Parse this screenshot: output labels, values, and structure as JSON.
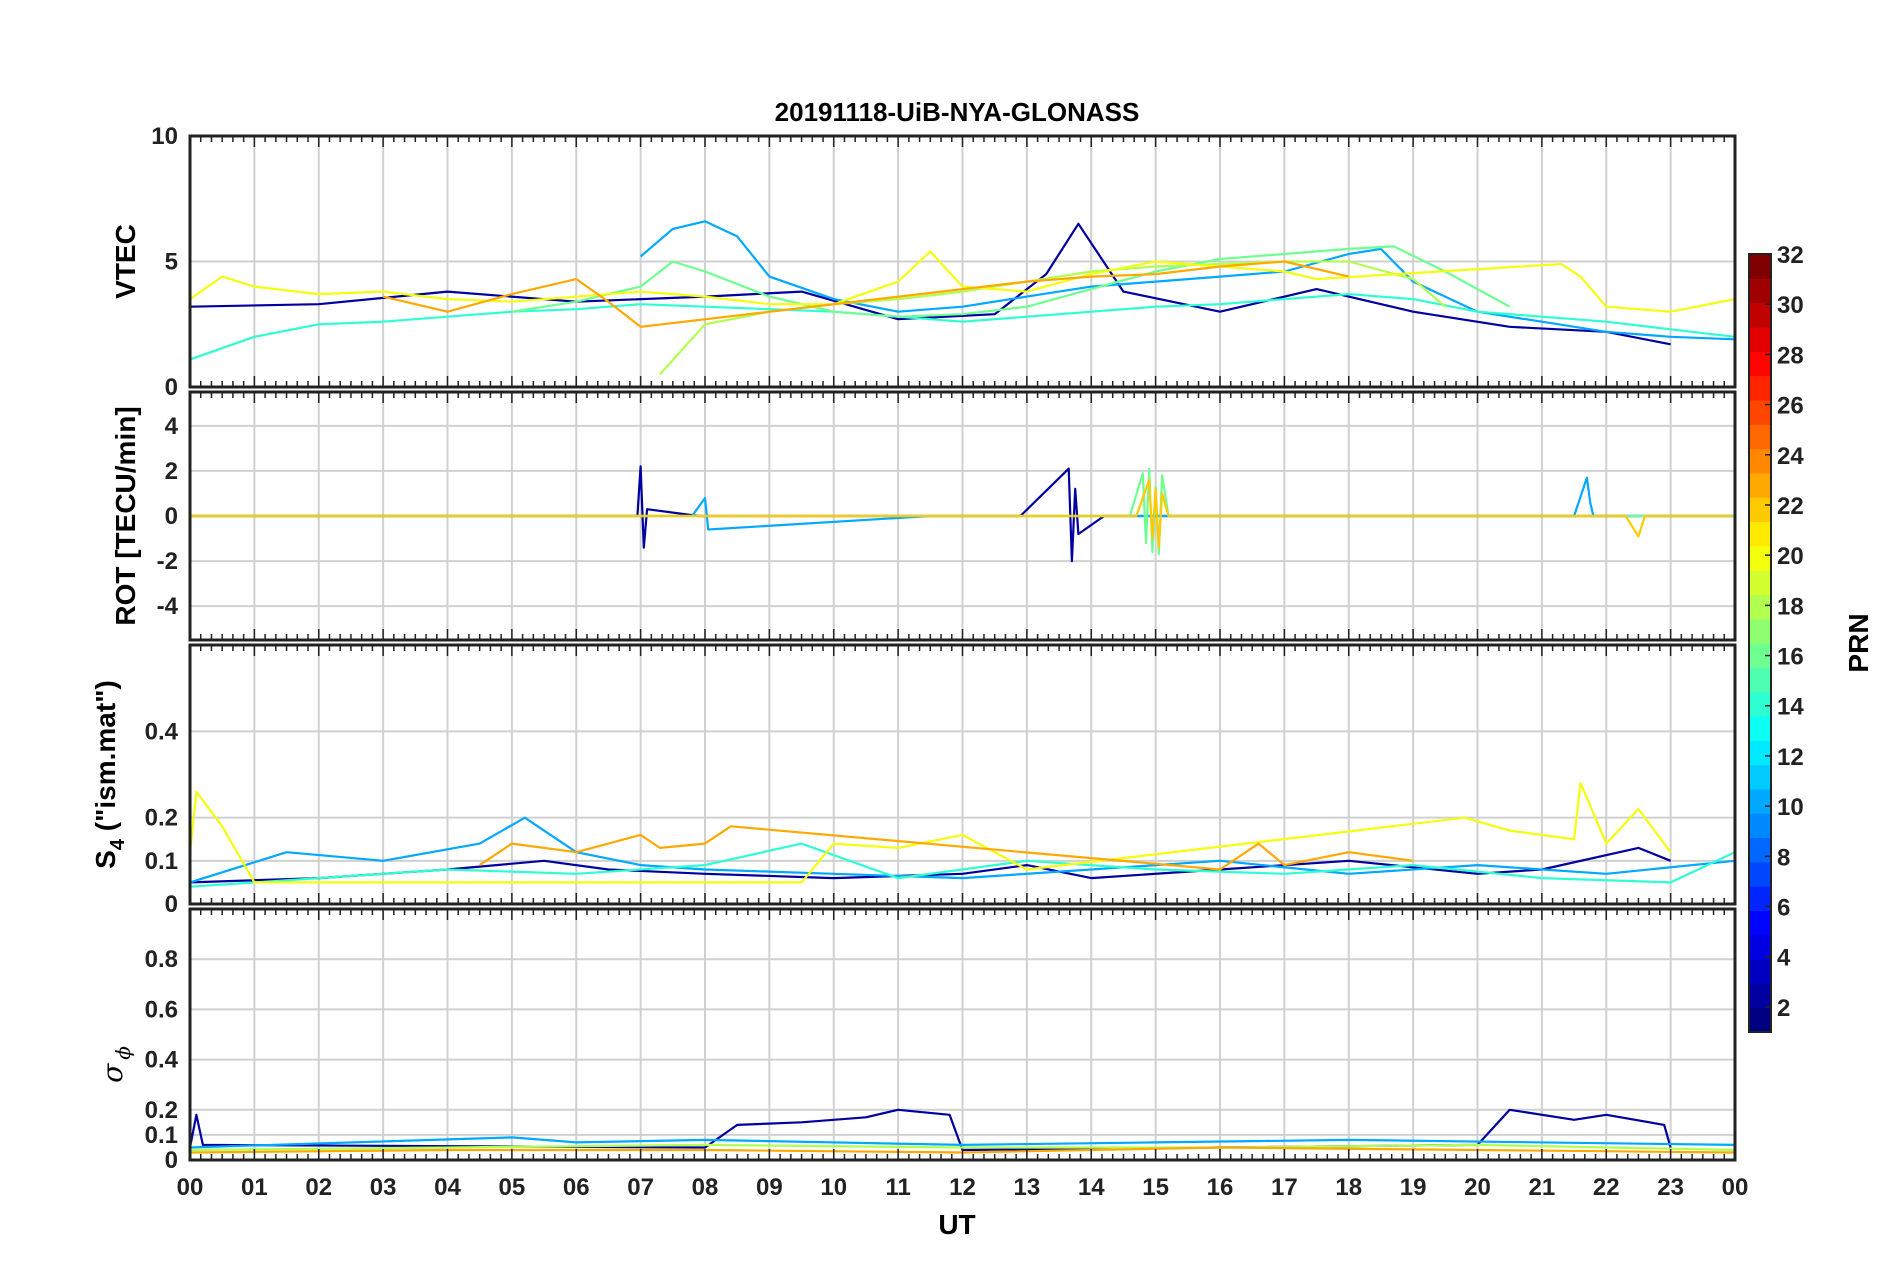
{
  "chart_data": {
    "type": "line",
    "title": "20191118-UiB-NYA-GLONASS",
    "xlabel": "UT",
    "x_range_hours": [
      0,
      24
    ],
    "x_tick_labels": [
      "00",
      "01",
      "02",
      "03",
      "04",
      "05",
      "06",
      "07",
      "08",
      "09",
      "10",
      "11",
      "12",
      "13",
      "14",
      "15",
      "16",
      "17",
      "18",
      "19",
      "20",
      "21",
      "22",
      "23",
      "00"
    ],
    "grid": true,
    "colorbar": {
      "label": "PRN",
      "range": [
        1,
        32
      ],
      "colormap": "jet",
      "tick_labels": [
        "2",
        "4",
        "6",
        "8",
        "10",
        "12",
        "14",
        "16",
        "18",
        "20",
        "22",
        "24",
        "26",
        "28",
        "30",
        "32"
      ]
    },
    "panels": [
      {
        "name": "vtec",
        "ylabel": "VTEC",
        "ylim": [
          0,
          10
        ],
        "y_ticks": [
          0,
          5,
          10
        ],
        "y_tick_labels": [
          "0",
          "5",
          "10"
        ],
        "series": [
          {
            "prn": 2,
            "x": [
              0.0,
              2.0,
              4.0,
              6.0,
              8.0,
              9.5,
              11.0,
              12.5,
              13.3,
              13.8,
              14.5,
              16.0,
              17.5,
              19.0,
              20.5,
              22.0,
              23.0
            ],
            "y": [
              3.2,
              3.3,
              3.8,
              3.4,
              3.6,
              3.8,
              2.7,
              2.9,
              4.5,
              6.5,
              3.8,
              3.0,
              3.9,
              3.0,
              2.4,
              2.2,
              1.7
            ]
          },
          {
            "prn": 10,
            "x": [
              7.0,
              7.5,
              8.0,
              8.5,
              9.0,
              10.0,
              11.0,
              12.0,
              13.0,
              14.0,
              15.0,
              16.0,
              17.0,
              18.0,
              18.5,
              19.0,
              20.0,
              21.0,
              22.0,
              23.0,
              24.0
            ],
            "y": [
              5.2,
              6.3,
              6.6,
              6.0,
              4.4,
              3.5,
              3.0,
              3.2,
              3.6,
              4.0,
              4.2,
              4.4,
              4.6,
              5.3,
              5.5,
              4.2,
              3.0,
              2.6,
              2.2,
              2.0,
              1.9
            ]
          },
          {
            "prn": 14,
            "x": [
              0.0,
              1.0,
              2.0,
              3.0,
              4.0,
              5.0,
              6.0,
              7.0,
              8.0,
              9.0,
              10.0,
              11.0,
              12.0,
              13.0,
              14.0,
              15.0,
              16.0,
              17.0,
              18.0,
              19.0,
              20.0,
              21.0,
              22.0,
              23.0,
              24.0
            ],
            "y": [
              1.1,
              2.0,
              2.5,
              2.6,
              2.8,
              3.0,
              3.1,
              3.3,
              3.2,
              3.1,
              3.0,
              2.8,
              2.6,
              2.8,
              3.0,
              3.2,
              3.3,
              3.5,
              3.7,
              3.5,
              3.0,
              2.8,
              2.6,
              2.3,
              2.0
            ]
          },
          {
            "prn": 16,
            "x": [
              5.0,
              6.0,
              7.0,
              7.5,
              8.0,
              9.0,
              10.0,
              11.0,
              12.0,
              13.0,
              14.0,
              15.0,
              16.0,
              17.0,
              18.0,
              18.7,
              19.5,
              20.5
            ],
            "y": [
              3.0,
              3.4,
              4.0,
              5.0,
              4.6,
              3.6,
              3.0,
              2.8,
              2.9,
              3.2,
              3.9,
              4.6,
              5.1,
              5.3,
              5.5,
              5.6,
              4.6,
              3.2
            ]
          },
          {
            "prn": 18,
            "x": [
              7.3,
              8.0,
              9.0,
              10.0,
              11.0,
              12.0,
              13.0,
              14.0,
              15.0,
              16.0,
              17.0,
              18.0,
              19.0,
              19.5
            ],
            "y": [
              0.5,
              2.5,
              3.0,
              3.3,
              3.5,
              3.8,
              4.2,
              4.6,
              4.8,
              4.9,
              5.0,
              5.0,
              4.3,
              3.2
            ]
          },
          {
            "prn": 20,
            "x": [
              0.0,
              0.5,
              1.0,
              2.0,
              3.0,
              4.0,
              5.0,
              6.0,
              7.0,
              8.0,
              9.0,
              10.0,
              11.0,
              11.5,
              12.0,
              13.0,
              14.0,
              15.0,
              16.0,
              17.0,
              17.5,
              21.3,
              21.6,
              22.0,
              23.0,
              24.0
            ],
            "y": [
              3.5,
              4.4,
              4.0,
              3.7,
              3.8,
              3.5,
              3.4,
              3.6,
              3.8,
              3.6,
              3.3,
              3.3,
              4.2,
              5.4,
              4.0,
              3.8,
              4.5,
              5.0,
              4.8,
              4.6,
              4.3,
              4.9,
              4.4,
              3.2,
              3.0,
              3.5
            ]
          },
          {
            "prn": 23,
            "x": [
              3.0,
              4.0,
              5.0,
              5.5,
              6.0,
              6.5,
              7.0,
              13.0,
              14.0,
              15.0,
              16.0,
              17.0,
              18.0
            ],
            "y": [
              3.6,
              3.0,
              3.7,
              4.0,
              4.3,
              3.4,
              2.4,
              4.2,
              4.4,
              4.5,
              4.8,
              5.0,
              4.4
            ]
          }
        ]
      },
      {
        "name": "rot",
        "ylabel": "ROT [TECU/min]",
        "ylim": [
          -5.5,
          5.5
        ],
        "y_ticks": [
          -4,
          -2,
          0,
          2,
          4
        ],
        "y_tick_labels": [
          "-4",
          "-2",
          "0",
          "2",
          "4"
        ],
        "series": [
          {
            "prn": 2,
            "x": [
              0,
              6.5,
              6.95,
              7.0,
              7.05,
              7.1,
              7.9,
              12.9,
              13.65,
              13.7,
              13.75,
              13.8,
              14.2,
              24
            ],
            "y": [
              0,
              0,
              0,
              2.2,
              -1.4,
              0.3,
              0,
              0,
              2.1,
              -2.0,
              1.2,
              -0.8,
              0,
              0
            ]
          },
          {
            "prn": 10,
            "x": [
              0,
              7.8,
              8.0,
              8.05,
              11.5,
              21.5,
              21.7,
              21.75,
              21.8,
              24
            ],
            "y": [
              0,
              0,
              0.8,
              -0.6,
              0,
              0,
              1.7,
              0.6,
              0,
              0
            ]
          },
          {
            "prn": 16,
            "x": [
              0,
              14.6,
              14.8,
              14.85,
              14.9,
              14.95,
              15.0,
              15.05,
              15.1,
              15.2,
              24
            ],
            "y": [
              0,
              0,
              1.9,
              -1.2,
              2.1,
              -1.6,
              1.3,
              -1.7,
              1.8,
              0,
              0
            ]
          },
          {
            "prn": 22,
            "x": [
              0,
              14.7,
              14.9,
              14.95,
              15.0,
              15.05,
              15.1,
              15.2,
              22.3,
              22.5,
              22.6,
              24
            ],
            "y": [
              0,
              0,
              1.6,
              -1.0,
              1.2,
              -1.4,
              1.0,
              0,
              0,
              -0.9,
              0,
              0
            ]
          }
        ]
      },
      {
        "name": "s4",
        "ylabel": "S",
        "ylabel_subscript": "4",
        "ylabel_suffix": " (\"ism.mat\")",
        "ylim": [
          0,
          0.6
        ],
        "y_ticks": [
          0,
          0.1,
          0.2,
          0.4
        ],
        "y_tick_labels": [
          "0",
          "0.1",
          "0.2",
          "0.4"
        ],
        "series": [
          {
            "prn": 2,
            "x": [
              0,
              2,
              4,
              5.5,
              6.5,
              8,
              10,
              12,
              13,
              14,
              16,
              18,
              20,
              21,
              22.5,
              23
            ],
            "y": [
              0.05,
              0.06,
              0.08,
              0.1,
              0.08,
              0.07,
              0.06,
              0.07,
              0.09,
              0.06,
              0.08,
              0.1,
              0.07,
              0.08,
              0.13,
              0.1
            ]
          },
          {
            "prn": 10,
            "x": [
              0,
              1.5,
              3,
              4.5,
              5.2,
              6,
              7,
              8,
              10,
              12,
              14,
              16,
              18,
              20,
              22,
              24
            ],
            "y": [
              0.05,
              0.12,
              0.1,
              0.14,
              0.2,
              0.12,
              0.09,
              0.08,
              0.07,
              0.06,
              0.08,
              0.1,
              0.07,
              0.09,
              0.07,
              0.1
            ]
          },
          {
            "prn": 14,
            "x": [
              0,
              2,
              4,
              6,
              8,
              9.5,
              11,
              13,
              15,
              17,
              19,
              21,
              23,
              24
            ],
            "y": [
              0.04,
              0.06,
              0.08,
              0.07,
              0.09,
              0.14,
              0.06,
              0.1,
              0.08,
              0.07,
              0.09,
              0.06,
              0.05,
              0.12
            ]
          },
          {
            "prn": 20,
            "x": [
              0,
              0.1,
              0.5,
              1,
              9.5,
              10,
              11,
              12,
              13,
              19.8,
              20.5,
              21.5,
              21.6,
              22,
              22.5,
              23
            ],
            "y": [
              0.12,
              0.26,
              0.18,
              0.05,
              0.05,
              0.14,
              0.13,
              0.16,
              0.08,
              0.2,
              0.17,
              0.15,
              0.28,
              0.14,
              0.22,
              0.12
            ]
          },
          {
            "prn": 23,
            "x": [
              4.5,
              5,
              6,
              7,
              7.3,
              8,
              8.4,
              16,
              16.6,
              17,
              18,
              19
            ],
            "y": [
              0.09,
              0.14,
              0.12,
              0.16,
              0.13,
              0.14,
              0.18,
              0.08,
              0.14,
              0.09,
              0.12,
              0.1
            ]
          }
        ]
      },
      {
        "name": "sigma_phi",
        "ylabel": "σ",
        "ylabel_subscript": "ϕ",
        "ylim": [
          0,
          1
        ],
        "y_ticks": [
          0,
          0.1,
          0.2,
          0.4,
          0.6,
          0.8
        ],
        "y_tick_labels": [
          "0",
          "0.1",
          "0.2",
          "0.4",
          "0.6",
          "0.8"
        ],
        "series": [
          {
            "prn": 2,
            "x": [
              0,
              0.1,
              0.2,
              8,
              8.5,
              9.5,
              10.5,
              11,
              11.8,
              12,
              20,
              20.5,
              21.5,
              22,
              22.9,
              23
            ],
            "y": [
              0.05,
              0.18,
              0.06,
              0.05,
              0.14,
              0.15,
              0.17,
              0.2,
              0.18,
              0.04,
              0.06,
              0.2,
              0.16,
              0.18,
              0.14,
              0.05
            ]
          },
          {
            "prn": 10,
            "x": [
              0,
              5,
              6,
              8,
              12,
              15,
              18,
              24
            ],
            "y": [
              0.05,
              0.09,
              0.07,
              0.08,
              0.06,
              0.07,
              0.08,
              0.06
            ]
          },
          {
            "prn": 18,
            "x": [
              0,
              4,
              8,
              12,
              16,
              20,
              24
            ],
            "y": [
              0.04,
              0.05,
              0.06,
              0.05,
              0.05,
              0.06,
              0.04
            ]
          },
          {
            "prn": 23,
            "x": [
              0,
              4,
              8,
              12,
              16,
              20,
              24
            ],
            "y": [
              0.03,
              0.04,
              0.04,
              0.03,
              0.05,
              0.04,
              0.03
            ]
          }
        ]
      }
    ]
  }
}
